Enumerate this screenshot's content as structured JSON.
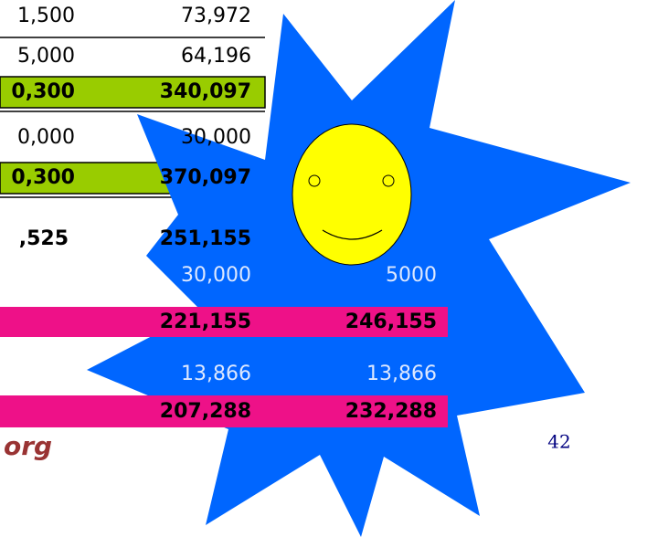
{
  "table": {
    "rows": [
      [
        "1,500",
        "73,972"
      ],
      [
        "5,000",
        "64,196"
      ],
      [
        "0,300",
        "340,097"
      ],
      [
        "0,000",
        "30,000"
      ],
      [
        "0,300",
        "370,097"
      ]
    ]
  },
  "summary": {
    "rows": [
      [
        ",525",
        "251,155"
      ],
      [
        "30,000",
        "5000"
      ],
      [
        "221,155",
        "246,155"
      ],
      [
        "13,866",
        "13,866"
      ],
      [
        "207,288",
        "232,288"
      ]
    ]
  },
  "footer": {
    "site": "org",
    "page": "42"
  }
}
